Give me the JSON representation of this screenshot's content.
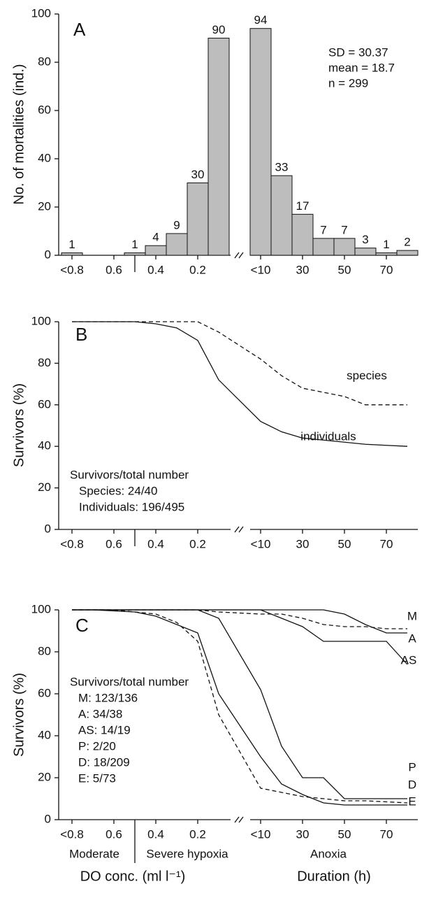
{
  "chart_data": [
    {
      "type": "bar",
      "title": "A",
      "ylabel": "No. of mortalities (ind.)",
      "categories": [
        "<0.8",
        null,
        "0.6",
        null,
        "0.4",
        null,
        "0.2",
        null,
        "<10",
        null,
        "30",
        null,
        "50",
        null,
        "70",
        null
      ],
      "values": [
        1,
        0,
        0,
        1,
        4,
        9,
        30,
        90,
        94,
        33,
        17,
        7,
        7,
        3,
        1,
        2
      ],
      "color": "#bdbdbd",
      "ylim": [
        0,
        100
      ],
      "yticks": [
        0,
        20,
        40,
        60,
        80,
        100
      ],
      "annotations": [
        "SD = 30.37",
        "mean = 18.7",
        "n = 299"
      ]
    },
    {
      "type": "line",
      "title": "B",
      "ylabel": "Survivors (%)",
      "categories": [
        "<0.8",
        null,
        "0.6",
        null,
        "0.4",
        null,
        "0.2",
        null,
        "<10",
        null,
        "30",
        null,
        "50",
        null,
        "70",
        null
      ],
      "series": [
        {
          "name": "species",
          "color": "#000000",
          "style": "dashed",
          "values": [
            100,
            100,
            100,
            100,
            100,
            100,
            100,
            95,
            82,
            74,
            68,
            66,
            64,
            60,
            60,
            60
          ]
        },
        {
          "name": "individuals",
          "color": "#000000",
          "style": "solid",
          "values": [
            100,
            100,
            100,
            100,
            99,
            97,
            91,
            72,
            52,
            47,
            44,
            43,
            42,
            41,
            40.5,
            40
          ]
        }
      ],
      "ylim": [
        0,
        100
      ],
      "yticks": [
        0,
        20,
        40,
        60,
        80,
        100
      ],
      "annotations": [
        "Survivors/total number",
        "Species: 24/40",
        "Individuals: 196/495"
      ]
    },
    {
      "type": "line",
      "title": "C",
      "ylabel": "Survivors (%)",
      "categories": [
        "<0.8",
        null,
        "0.6",
        null,
        "0.4",
        null,
        "0.2",
        null,
        "<10",
        null,
        "30",
        null,
        "50",
        null,
        "70",
        null
      ],
      "series": [
        {
          "name": "M",
          "color": "#000000",
          "style": "dashed",
          "values": [
            100,
            100,
            100,
            100,
            100,
            100,
            100,
            99,
            98,
            98,
            96,
            93,
            92,
            92,
            91,
            91
          ]
        },
        {
          "name": "A",
          "color": "#000000",
          "style": "solid",
          "values": [
            100,
            100,
            100,
            100,
            100,
            100,
            100,
            100,
            100,
            100,
            100,
            100,
            98,
            93,
            89,
            89
          ]
        },
        {
          "name": "AS",
          "color": "#000000",
          "style": "solid",
          "values": [
            100,
            100,
            100,
            100,
            100,
            100,
            100,
            100,
            100,
            96,
            92,
            85,
            85,
            85,
            85,
            74
          ]
        },
        {
          "name": "P",
          "color": "#000000",
          "style": "solid",
          "values": [
            100,
            100,
            100,
            100,
            100,
            100,
            100,
            96,
            62,
            35,
            20,
            20,
            10,
            10,
            10,
            10
          ]
        },
        {
          "name": "D",
          "color": "#000000",
          "style": "dashed",
          "values": [
            100,
            100,
            100,
            99,
            98,
            94,
            85,
            50,
            15,
            13,
            11,
            10,
            9,
            9,
            8.5,
            8
          ]
        },
        {
          "name": "E",
          "color": "#000000",
          "style": "solid",
          "values": [
            100,
            100,
            99.5,
            99,
            97,
            93,
            89,
            60,
            30,
            17,
            12,
            8,
            7,
            7,
            7,
            7
          ]
        }
      ],
      "ylim": [
        0,
        100
      ],
      "yticks": [
        0,
        20,
        40,
        60,
        80,
        100
      ],
      "annotations": [
        "Survivors/total number",
        "M: 123/136",
        "A: 34/38",
        "AS: 14/19",
        "P: 2/20",
        "D: 18/209",
        "E: 5/73"
      ],
      "region_labels": [
        "Moderate",
        "Severe hypoxia",
        "Anoxia"
      ],
      "xlabels": [
        "DO conc. (ml l⁻¹)",
        "Duration (h)"
      ]
    }
  ]
}
